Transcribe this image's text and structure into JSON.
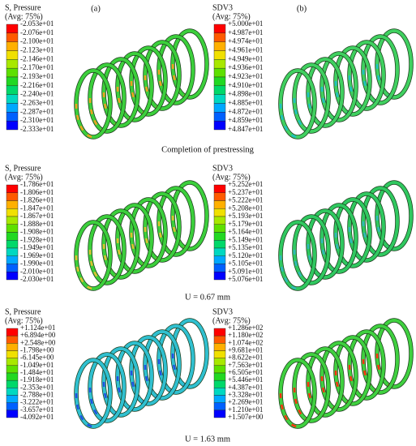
{
  "column_labels": [
    "(a)",
    "(b)"
  ],
  "rows": [
    {
      "caption": "Completion of prestressing",
      "panels": [
        {
          "title": "S, Pressure",
          "subtitle": "(Avg: 75%)",
          "levels": [
            "-2.053e+01",
            "-2.076e+01",
            "-2.100e+01",
            "-2.123e+01",
            "-2.146e+01",
            "-2.170e+01",
            "-2.193e+01",
            "-2.216e+01",
            "-2.240e+01",
            "-2.263e+01",
            "-2.287e+01",
            "-2.310e+01",
            "-2.333e+01"
          ]
        },
        {
          "title": "SDV3",
          "subtitle": "(Avg: 75%)",
          "levels": [
            "+5.000e+01",
            "+4.987e+01",
            "+4.974e+01",
            "+4.961e+01",
            "+4.949e+01",
            "+4.936e+01",
            "+4.923e+01",
            "+4.910e+01",
            "+4.898e+01",
            "+4.885e+01",
            "+4.872e+01",
            "+4.859e+01",
            "+4.847e+01"
          ]
        }
      ]
    },
    {
      "caption": "U = 0.67 mm",
      "panels": [
        {
          "title": "S, Pressure",
          "subtitle": "(Avg: 75%)",
          "levels": [
            "-1.786e+01",
            "-1.806e+01",
            "-1.826e+01",
            "-1.847e+01",
            "-1.867e+01",
            "-1.888e+01",
            "-1.908e+01",
            "-1.928e+01",
            "-1.949e+01",
            "-1.969e+01",
            "-1.990e+01",
            "-2.010e+01",
            "-2.030e+01"
          ]
        },
        {
          "title": "SDV3",
          "subtitle": "(Avg: 75%)",
          "levels": [
            "+5.252e+01",
            "+5.237e+01",
            "+5.222e+01",
            "+5.208e+01",
            "+5.193e+01",
            "+5.179e+01",
            "+5.164e+01",
            "+5.149e+01",
            "+5.135e+01",
            "+5.120e+01",
            "+5.105e+01",
            "+5.091e+01",
            "+5.076e+01"
          ]
        }
      ]
    },
    {
      "caption": "U = 1.63 mm",
      "panels": [
        {
          "title": "S, Pressure",
          "subtitle": "(Avg: 75%)",
          "levels": [
            "+1.124e+01",
            "+6.894e+00",
            "+2.548e+00",
            "-1.798e+00",
            "-6.145e+00",
            "-1.049e+01",
            "-1.484e+01",
            "-1.918e+01",
            "-2.353e+01",
            "-2.788e+01",
            "-3.222e+01",
            "-3.657e+01",
            "-4.092e+01"
          ]
        },
        {
          "title": "SDV3",
          "subtitle": "(Avg: 75%)",
          "levels": [
            "+1.286e+02",
            "+1.180e+02",
            "+1.074e+02",
            "+9.681e+01",
            "+8.622e+01",
            "+7.563e+01",
            "+6.505e+01",
            "+5.446e+01",
            "+4.387e+01",
            "+3.328e+01",
            "+2.269e+01",
            "+1.210e+01",
            "+1.507e+00"
          ]
        }
      ]
    }
  ]
}
